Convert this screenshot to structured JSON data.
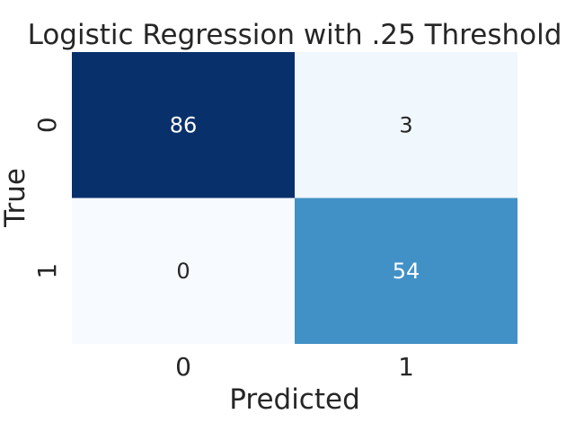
{
  "chart_data": {
    "type": "heatmap",
    "title": "Logistic Regression with .25 Threshold",
    "xlabel": "Predicted",
    "ylabel": "True",
    "x_categories": [
      "0",
      "1"
    ],
    "y_categories": [
      "0",
      "1"
    ],
    "values": [
      [
        86,
        3
      ],
      [
        0,
        54
      ]
    ],
    "colormap": "Blues",
    "value_range": [
      0,
      86
    ],
    "colorbar": false,
    "grid": false
  }
}
